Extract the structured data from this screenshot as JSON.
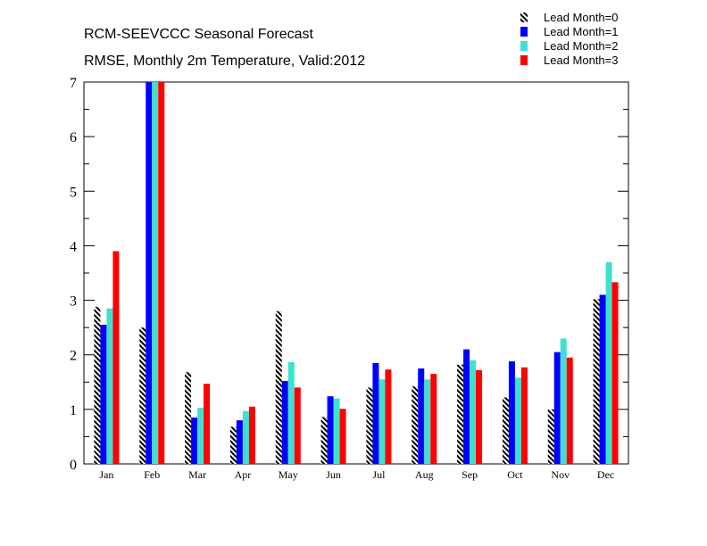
{
  "chart_data": {
    "type": "bar",
    "title": "RCM-SEEVCCC Seasonal Forecast",
    "subtitle": "RMSE, Monthly 2m Temperature, Valid:2012",
    "categories": [
      "Jan",
      "Feb",
      "Mar",
      "Apr",
      "May",
      "Jun",
      "Jul",
      "Aug",
      "Sep",
      "Oct",
      "Nov",
      "Dec"
    ],
    "series": [
      {
        "name": "Lead Month=0",
        "color": "#000000",
        "pattern": "hatched",
        "values": [
          2.88,
          2.5,
          1.68,
          0.68,
          2.8,
          0.86,
          1.4,
          1.42,
          1.82,
          1.22,
          1.0,
          3.02
        ]
      },
      {
        "name": "Lead Month=1",
        "color": "#0000ff",
        "pattern": "solid",
        "values": [
          2.55,
          7.0,
          0.85,
          0.8,
          1.52,
          1.24,
          1.85,
          1.75,
          2.1,
          1.88,
          2.05,
          3.1
        ]
      },
      {
        "name": "Lead Month=2",
        "color": "#40e0d0",
        "pattern": "solid",
        "values": [
          2.85,
          7.0,
          1.03,
          0.97,
          1.87,
          1.2,
          1.55,
          1.55,
          1.9,
          1.58,
          2.3,
          3.7
        ]
      },
      {
        "name": "Lead Month=3",
        "color": "#ff0000",
        "pattern": "solid",
        "values": [
          3.9,
          7.0,
          1.47,
          1.05,
          1.4,
          1.01,
          1.73,
          1.65,
          1.72,
          1.77,
          1.95,
          3.33
        ]
      }
    ],
    "ylim": [
      0,
      7
    ],
    "yticks": [
      0,
      1,
      2,
      3,
      4,
      5,
      6,
      7
    ],
    "xlabel": "",
    "ylabel": "",
    "grid": false,
    "legend": "top-right"
  }
}
